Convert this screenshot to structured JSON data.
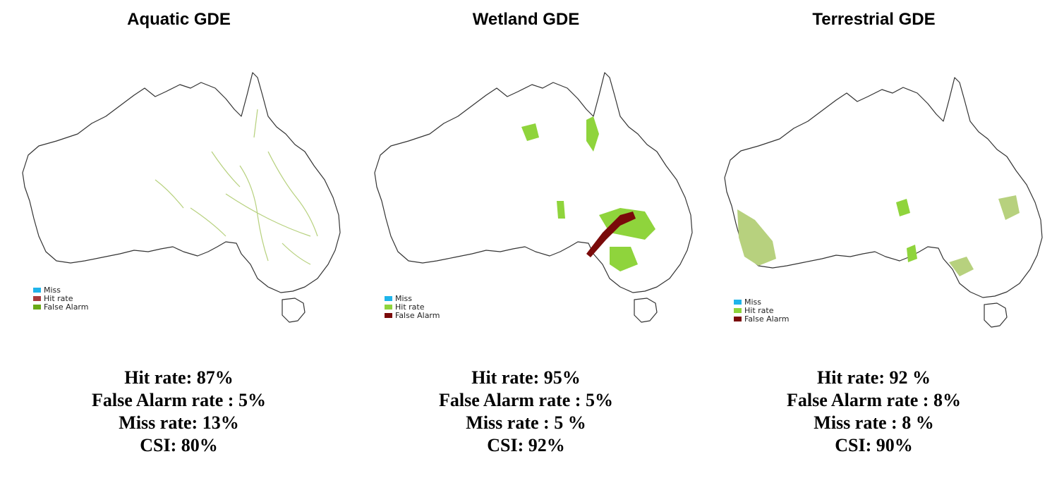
{
  "colors": {
    "miss": "#1fb4ea",
    "hit_aquatic": "#a83c3c",
    "false_alarm_aquatic": "#6aaa17",
    "hit_green": "#8fd43c",
    "false_alarm_dark": "#7a0a0a",
    "outline": "#333333",
    "land_pattern": "#b7d17e"
  },
  "panels": [
    {
      "title": "Aquatic GDE",
      "legend": [
        {
          "label": "Miss",
          "color": "#1fb4ea"
        },
        {
          "label": "Hit rate",
          "color": "#a83c3c"
        },
        {
          "label": "False Alarm",
          "color": "#6aaa17"
        }
      ],
      "stats": [
        "Hit rate: 87%",
        "False Alarm rate : 5%",
        "Miss rate: 13%",
        "CSI: 80%"
      ]
    },
    {
      "title": "Wetland GDE",
      "legend": [
        {
          "label": "Miss",
          "color": "#1fb4ea"
        },
        {
          "label": "Hit rate",
          "color": "#8fd43c"
        },
        {
          "label": "False Alarm",
          "color": "#7a0a0a"
        }
      ],
      "stats": [
        "Hit rate: 95%",
        "False Alarm rate : 5%",
        "Miss rate : 5 %",
        "CSI: 92%"
      ]
    },
    {
      "title": "Terrestrial GDE",
      "legend": [
        {
          "label": "Miss",
          "color": "#1fb4ea"
        },
        {
          "label": "Hit rate",
          "color": "#8fd43c"
        },
        {
          "label": "False Alarm",
          "color": "#7a0a0a"
        }
      ],
      "stats": [
        "Hit rate: 92 %",
        "False Alarm rate : 8%",
        "Miss rate : 8 %",
        "CSI: 90%"
      ]
    }
  ]
}
